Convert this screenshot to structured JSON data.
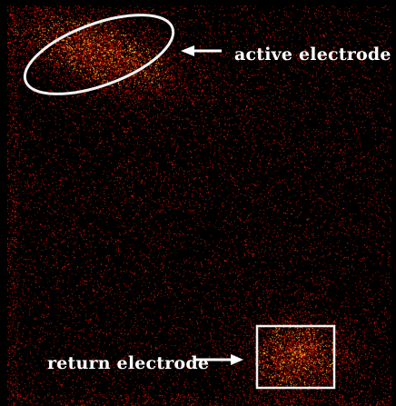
{
  "image": {
    "background_color": "#000000",
    "signal_color": "#ff3a1a"
  },
  "annotations": {
    "active_label": "active electrode",
    "return_label": "return electrode",
    "marker_color": "#ffffff"
  }
}
